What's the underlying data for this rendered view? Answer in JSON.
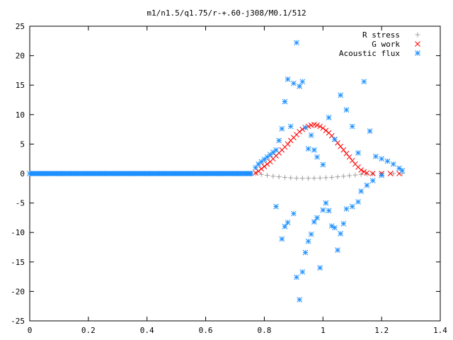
{
  "chart_data": {
    "type": "scatter",
    "title": "m1/n1.5/q1.75/r-+.60-j308/M0.1/512",
    "xlabel": "",
    "ylabel": "",
    "xlim": [
      0,
      1.4
    ],
    "ylim": [
      -25,
      25
    ],
    "xticks": [
      0,
      0.2,
      0.4,
      0.6,
      0.8,
      1,
      1.2,
      1.4
    ],
    "xtick_labels": [
      "0",
      "0.2",
      "0.4",
      "0.6",
      "0.8",
      "1",
      "1.2",
      "1.4"
    ],
    "yticks": [
      -25,
      -20,
      -15,
      -10,
      -5,
      0,
      5,
      10,
      15,
      20,
      25
    ],
    "ytick_labels": [
      "-25",
      "-20",
      "-15",
      "-10",
      "-5",
      "0",
      "5",
      "10",
      "15",
      "20",
      "25"
    ],
    "grid": false,
    "legend_position": "top-right",
    "series": [
      {
        "name": "R stress",
        "marker": "plus",
        "color": "#a0a0a0",
        "points": [
          [
            0.77,
            0.0
          ],
          [
            0.79,
            -0.15
          ],
          [
            0.81,
            -0.3
          ],
          [
            0.83,
            -0.45
          ],
          [
            0.85,
            -0.55
          ],
          [
            0.87,
            -0.65
          ],
          [
            0.89,
            -0.72
          ],
          [
            0.91,
            -0.78
          ],
          [
            0.93,
            -0.8
          ],
          [
            0.95,
            -0.8
          ],
          [
            0.97,
            -0.78
          ],
          [
            0.99,
            -0.75
          ],
          [
            1.01,
            -0.7
          ],
          [
            1.03,
            -0.65
          ],
          [
            1.05,
            -0.55
          ],
          [
            1.07,
            -0.45
          ],
          [
            1.09,
            -0.35
          ],
          [
            1.11,
            -0.25
          ],
          [
            1.13,
            -0.15
          ],
          [
            1.15,
            -0.1
          ],
          [
            1.17,
            -0.05
          ],
          [
            1.2,
            0.0
          ],
          [
            1.24,
            0.0
          ],
          [
            1.27,
            0.0
          ]
        ]
      },
      {
        "name": "G work",
        "marker": "cross",
        "color": "#ff0000",
        "points": [
          [
            0.77,
            0.1
          ],
          [
            0.78,
            0.4
          ],
          [
            0.79,
            0.8
          ],
          [
            0.8,
            1.2
          ],
          [
            0.81,
            1.6
          ],
          [
            0.82,
            2.0
          ],
          [
            0.83,
            2.5
          ],
          [
            0.84,
            3.0
          ],
          [
            0.85,
            3.5
          ],
          [
            0.86,
            4.0
          ],
          [
            0.87,
            4.5
          ],
          [
            0.88,
            5.0
          ],
          [
            0.89,
            5.6
          ],
          [
            0.9,
            6.1
          ],
          [
            0.91,
            6.6
          ],
          [
            0.92,
            7.1
          ],
          [
            0.93,
            7.5
          ],
          [
            0.94,
            7.8
          ],
          [
            0.95,
            8.0
          ],
          [
            0.96,
            8.2
          ],
          [
            0.97,
            8.3
          ],
          [
            0.98,
            8.2
          ],
          [
            0.99,
            8.0
          ],
          [
            1.0,
            7.7
          ],
          [
            1.01,
            7.3
          ],
          [
            1.02,
            6.9
          ],
          [
            1.03,
            6.4
          ],
          [
            1.04,
            5.8
          ],
          [
            1.05,
            5.2
          ],
          [
            1.06,
            4.6
          ],
          [
            1.07,
            4.0
          ],
          [
            1.08,
            3.4
          ],
          [
            1.09,
            2.8
          ],
          [
            1.1,
            2.2
          ],
          [
            1.11,
            1.6
          ],
          [
            1.12,
            1.1
          ],
          [
            1.13,
            0.6
          ],
          [
            1.14,
            0.3
          ],
          [
            1.15,
            0.1
          ],
          [
            1.17,
            0.0
          ],
          [
            1.2,
            0.0
          ],
          [
            1.23,
            0.0
          ],
          [
            1.26,
            0.0
          ]
        ]
      },
      {
        "name": "Acoustic flux",
        "marker": "star",
        "color": "#1e90ff",
        "points": [
          [
            0.0,
            0.0
          ],
          [
            0.05,
            0.0
          ],
          [
            0.1,
            0.0
          ],
          [
            0.15,
            0.0
          ],
          [
            0.2,
            0.0
          ],
          [
            0.25,
            0.0
          ],
          [
            0.3,
            0.0
          ],
          [
            0.35,
            0.0
          ],
          [
            0.4,
            0.0
          ],
          [
            0.45,
            0.0
          ],
          [
            0.5,
            0.0
          ],
          [
            0.55,
            0.0
          ],
          [
            0.6,
            0.0
          ],
          [
            0.65,
            0.0
          ],
          [
            0.7,
            0.0
          ],
          [
            0.75,
            0.0
          ],
          [
            0.77,
            1.0
          ],
          [
            0.78,
            1.6
          ],
          [
            0.79,
            2.0
          ],
          [
            0.8,
            2.4
          ],
          [
            0.81,
            2.8
          ],
          [
            0.82,
            3.2
          ],
          [
            0.83,
            3.6
          ],
          [
            0.84,
            4.0
          ],
          [
            0.85,
            5.6
          ],
          [
            0.86,
            7.6
          ],
          [
            0.87,
            12.2
          ],
          [
            0.88,
            16.0
          ],
          [
            0.89,
            8.0
          ],
          [
            0.9,
            15.3
          ],
          [
            0.91,
            22.2
          ],
          [
            0.92,
            14.8
          ],
          [
            0.93,
            15.6
          ],
          [
            0.94,
            7.8
          ],
          [
            0.95,
            4.2
          ],
          [
            0.96,
            6.5
          ],
          [
            0.97,
            4.0
          ],
          [
            0.98,
            2.8
          ],
          [
            1.0,
            1.5
          ],
          [
            1.02,
            9.5
          ],
          [
            1.04,
            5.8
          ],
          [
            1.06,
            13.3
          ],
          [
            1.08,
            10.8
          ],
          [
            1.1,
            8.0
          ],
          [
            1.12,
            3.5
          ],
          [
            1.14,
            15.6
          ],
          [
            1.16,
            7.2
          ],
          [
            1.18,
            2.9
          ],
          [
            1.2,
            2.5
          ],
          [
            1.22,
            2.1
          ],
          [
            1.24,
            1.6
          ],
          [
            1.26,
            0.9
          ],
          [
            1.27,
            0.5
          ],
          [
            0.84,
            -5.6
          ],
          [
            0.86,
            -11.1
          ],
          [
            0.87,
            -9.0
          ],
          [
            0.88,
            -8.3
          ],
          [
            0.9,
            -6.8
          ],
          [
            0.91,
            -17.6
          ],
          [
            0.92,
            -21.4
          ],
          [
            0.93,
            -16.7
          ],
          [
            0.94,
            -13.4
          ],
          [
            0.95,
            -11.5
          ],
          [
            0.96,
            -10.3
          ],
          [
            0.97,
            -8.2
          ],
          [
            0.98,
            -7.5
          ],
          [
            0.99,
            -16.0
          ],
          [
            1.0,
            -6.2
          ],
          [
            1.01,
            -5.0
          ],
          [
            1.02,
            -6.3
          ],
          [
            1.03,
            -8.9
          ],
          [
            1.04,
            -9.2
          ],
          [
            1.05,
            -13.0
          ],
          [
            1.06,
            -10.2
          ],
          [
            1.07,
            -8.5
          ],
          [
            1.08,
            -6.0
          ],
          [
            1.1,
            -5.6
          ],
          [
            1.12,
            -4.8
          ],
          [
            1.13,
            -3.0
          ],
          [
            1.15,
            -2.0
          ],
          [
            1.17,
            -1.2
          ],
          [
            1.2,
            -0.3
          ]
        ]
      }
    ]
  }
}
